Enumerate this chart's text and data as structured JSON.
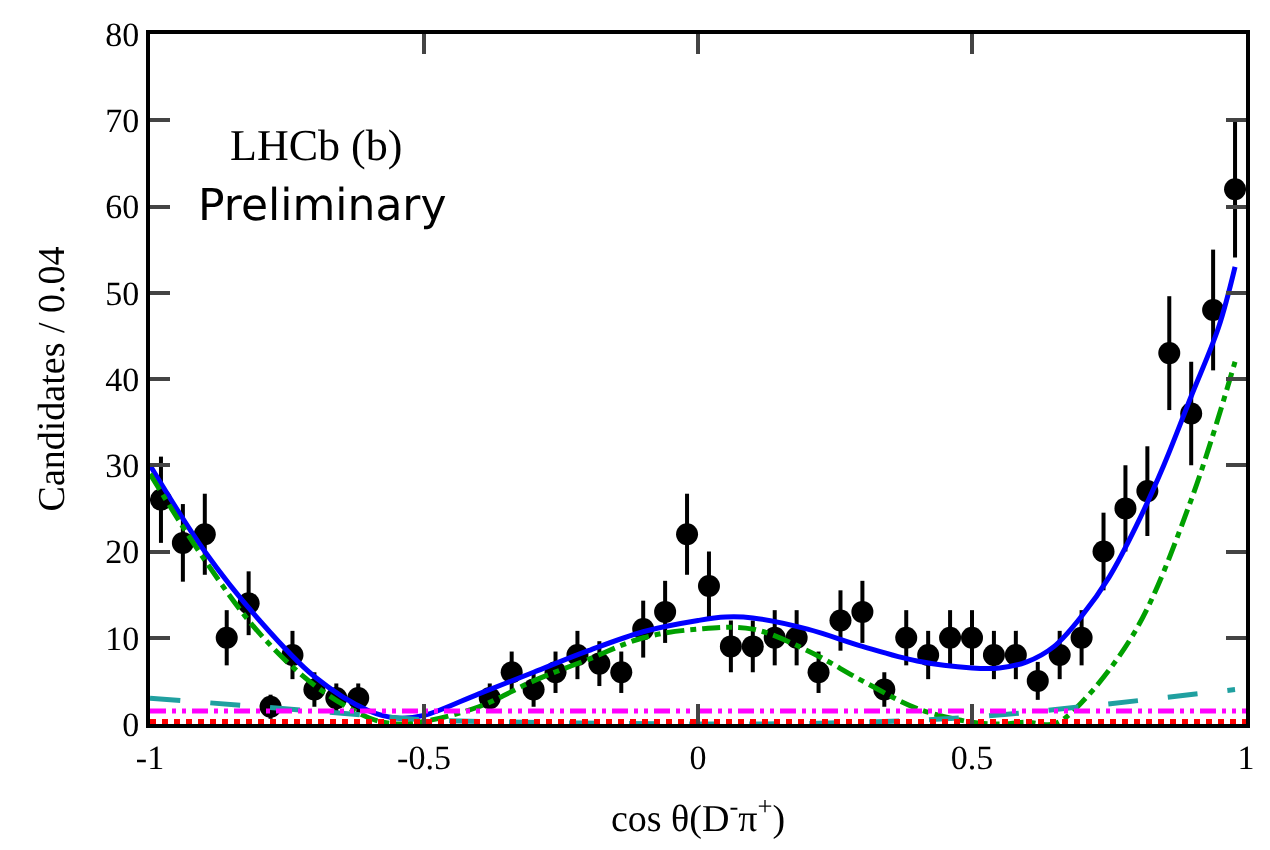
{
  "chart_data": {
    "type": "scatter",
    "xlabel": "cos θ(D$^{-}$π$^{+}$)",
    "ylabel": "Candidates / 0.04",
    "annotations": [
      "LHCb (b)",
      "Preliminary"
    ],
    "xlim": [
      -1,
      1
    ],
    "xticks": [
      -1,
      -0.5,
      0,
      0.5,
      1
    ],
    "ylim": [
      0,
      80
    ],
    "yticks": [
      0,
      10,
      20,
      30,
      40,
      50,
      60,
      70,
      80
    ],
    "series": [
      {
        "color": "#000000",
        "marker": "circle",
        "x": [
          -0.98,
          -0.94,
          -0.9,
          -0.86,
          -0.82,
          -0.78,
          -0.74,
          -0.7,
          -0.66,
          -0.62,
          -0.38,
          -0.34,
          -0.3,
          -0.26,
          -0.22,
          -0.18,
          -0.14,
          -0.1,
          -0.06,
          -0.02,
          0.02,
          0.06,
          0.1,
          0.14,
          0.18,
          0.22,
          0.26,
          0.3,
          0.34,
          0.38,
          0.42,
          0.46,
          0.5,
          0.54,
          0.58,
          0.62,
          0.66,
          0.7,
          0.74,
          0.78,
          0.82,
          0.86,
          0.9,
          0.94,
          0.98
        ],
        "values": [
          26,
          21,
          22,
          10,
          14,
          2,
          8,
          4,
          3,
          3,
          3,
          6,
          4,
          6,
          8,
          7,
          6,
          11,
          13,
          22,
          16,
          9,
          9,
          10,
          10,
          6,
          12,
          13,
          4,
          10,
          8,
          10,
          10,
          8,
          8,
          5,
          8,
          10,
          20,
          25,
          27,
          43,
          36,
          48,
          62
        ],
        "errors": [
          5,
          4.5,
          4.7,
          3.2,
          3.7,
          1.4,
          2.8,
          2,
          1.7,
          1.7,
          1.7,
          2.4,
          2,
          2.4,
          2.8,
          2.6,
          2.4,
          3.3,
          3.6,
          4.7,
          4,
          3,
          3,
          3.2,
          3.2,
          2.4,
          3.5,
          3.6,
          2,
          3.2,
          2.8,
          3.2,
          3.2,
          2.8,
          2.8,
          2.2,
          2.8,
          3.2,
          4.5,
          5,
          5.2,
          6.6,
          6,
          7,
          7.9
        ]
      },
      {
        "type": "line",
        "color": "#0000ff",
        "line_style": "solid",
        "x": [
          -1,
          -0.9,
          -0.8,
          -0.7,
          -0.6,
          -0.55,
          -0.5,
          -0.4,
          -0.3,
          -0.2,
          -0.1,
          0,
          0.05,
          0.1,
          0.2,
          0.3,
          0.4,
          0.5,
          0.55,
          0.6,
          0.65,
          0.7,
          0.75,
          0.8,
          0.85,
          0.9,
          0.95,
          0.98
        ],
        "values": [
          30,
          20,
          12,
          5.5,
          1.5,
          0.7,
          1,
          3.5,
          6,
          8.5,
          10.7,
          12,
          12.4,
          12.3,
          11,
          9,
          7.3,
          6.5,
          6.5,
          7.2,
          9,
          12.5,
          17,
          23,
          30,
          38,
          46,
          53
        ]
      },
      {
        "type": "line",
        "color": "#00a000",
        "line_style": "dashdot",
        "x": [
          -1,
          -0.9,
          -0.8,
          -0.7,
          -0.6,
          -0.55,
          -0.5,
          -0.4,
          -0.3,
          -0.2,
          -0.1,
          0,
          0.1,
          0.2,
          0.3,
          0.4,
          0.5,
          0.55,
          0.6,
          0.65,
          0.7,
          0.8,
          0.9,
          0.98
        ],
        "values": [
          29,
          19,
          10.5,
          4.5,
          0.7,
          0,
          0.3,
          2,
          5,
          7.5,
          10,
          11,
          11,
          8.5,
          5,
          1.8,
          0.2,
          0,
          0.2,
          0,
          2.5,
          11,
          26,
          42
        ]
      },
      {
        "type": "line",
        "color": "#20a0a0",
        "line_style": "longdash",
        "x": [
          -1,
          -0.6,
          -0.5,
          0,
          0.3,
          0.5,
          0.7,
          0.98
        ],
        "values": [
          3,
          1,
          0.5,
          0,
          0.2,
          0.8,
          2,
          4
        ]
      },
      {
        "type": "line",
        "color": "#ff00ff",
        "line_style": "dashdotdot",
        "x": [
          -1,
          1
        ],
        "values": [
          1.5,
          1.5
        ]
      },
      {
        "type": "line",
        "color": "#ff0000",
        "line_style": "dotted",
        "x": [
          -1,
          1
        ],
        "values": [
          0.3,
          0.3
        ]
      }
    ]
  }
}
